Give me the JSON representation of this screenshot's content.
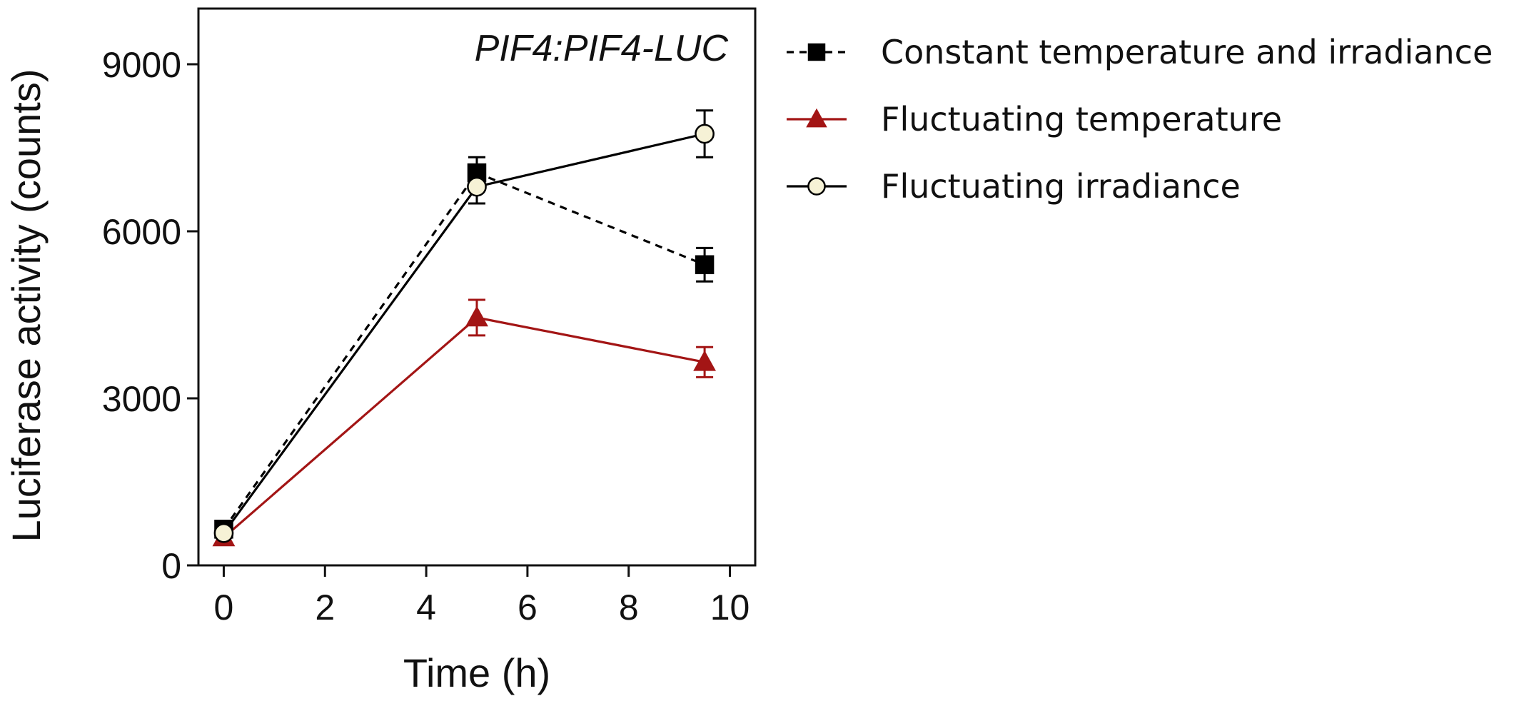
{
  "chart_data": {
    "type": "line",
    "annotation": "PIF4:PIF4-LUC",
    "xlabel": "Time (h)",
    "ylabel": "Luciferase activity (counts)",
    "xlim": [
      -0.5,
      10.5
    ],
    "ylim": [
      0,
      10000
    ],
    "xticks": [
      0,
      2,
      4,
      6,
      8,
      10
    ],
    "yticks": [
      0,
      3000,
      6000,
      9000
    ],
    "grid": false,
    "legend_position": "right",
    "series": [
      {
        "name": "Constant temperature and irradiance",
        "color": "#000000",
        "line_style": "dashed",
        "marker": "square",
        "marker_fill": "#000000",
        "x": [
          0,
          5,
          9.5
        ],
        "y": [
          650,
          7050,
          5400
        ],
        "err": [
          80,
          280,
          300
        ]
      },
      {
        "name": "Fluctuating temperature",
        "color": "#a31515",
        "line_style": "solid",
        "marker": "triangle",
        "marker_fill": "#a31515",
        "x": [
          0,
          5,
          9.5
        ],
        "y": [
          500,
          4450,
          3650
        ],
        "err": [
          80,
          320,
          270
        ]
      },
      {
        "name": "Fluctuating irradiance",
        "color": "#000000",
        "line_style": "solid",
        "marker": "circle",
        "marker_fill": "#f6f2d6",
        "x": [
          0,
          5,
          9.5
        ],
        "y": [
          580,
          6800,
          7750
        ],
        "err": [
          80,
          300,
          420
        ]
      }
    ]
  }
}
